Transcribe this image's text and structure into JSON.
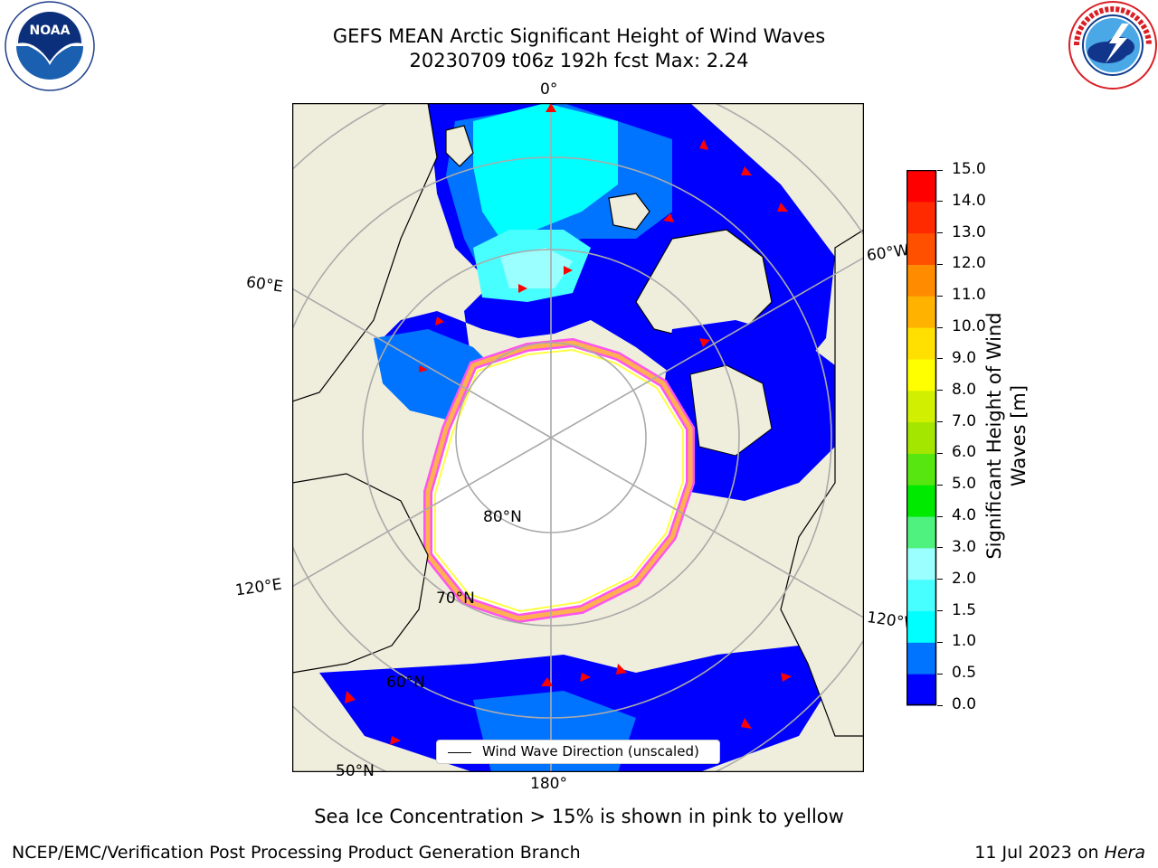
{
  "title": {
    "line1": "GEFS MEAN Arctic Significant Height of Wind Waves",
    "line2": "20230709 t06z 192h fcst   Max: 2.24"
  },
  "logos": {
    "left": {
      "text": "NOAA",
      "ring_text": "NATIONAL OCEANIC AND ATMOSPHERIC ADMINISTRATION · U.S. DEPARTMENT OF COMMERCE"
    },
    "right": {
      "ring_text": "NATIONAL WEATHER SERVICE"
    }
  },
  "map": {
    "labels": {
      "top": "0°",
      "left_upper": "60°E",
      "left_lower": "120°E",
      "right_upper": "60°W",
      "right_lower": "120°W",
      "bottom": "180°",
      "lat80": "80°N",
      "lat70": "70°N",
      "lat60": "60°N",
      "lat50": "50°N"
    },
    "legend": {
      "label": "Wind Wave Direction (unscaled)"
    },
    "colors": {
      "land": "#efeedc",
      "ice": "#ffffff",
      "wave_0": "#0000ff",
      "wave_05": "#0073ff",
      "wave_1": "#00ffff",
      "wave_15": "#48fff4",
      "ice_edge_pink": "#ff55ee",
      "ice_edge_orange": "#ffb050",
      "ice_edge_yellow": "#ffff40",
      "arrow": "#ff0000"
    }
  },
  "colorbar": {
    "label_line1": "Significant Height of Wind",
    "label_line2": "Waves [m]",
    "ticks": [
      "0.0",
      "0.5",
      "1.0",
      "1.5",
      "2.0",
      "3.0",
      "4.0",
      "5.0",
      "6.0",
      "7.0",
      "8.0",
      "9.0",
      "10.0",
      "11.0",
      "12.0",
      "13.0",
      "14.0",
      "15.0"
    ],
    "colors": [
      "#0000ff",
      "#0073ff",
      "#00ffff",
      "#48ffff",
      "#9bffff",
      "#4ff27e",
      "#00ea00",
      "#57e610",
      "#a4e600",
      "#d1ef00",
      "#ffff00",
      "#ffe000",
      "#ffb300",
      "#ff8c00",
      "#ff5000",
      "#ff2a00",
      "#ff0000"
    ]
  },
  "caption": "Sea Ice Concentration > 15% is shown in pink to yellow",
  "footer": {
    "left": "NCEP/EMC/Verification Post Processing Product Generation Branch",
    "right_prefix": "11 Jul 2023 on ",
    "right_host": "Hera"
  }
}
